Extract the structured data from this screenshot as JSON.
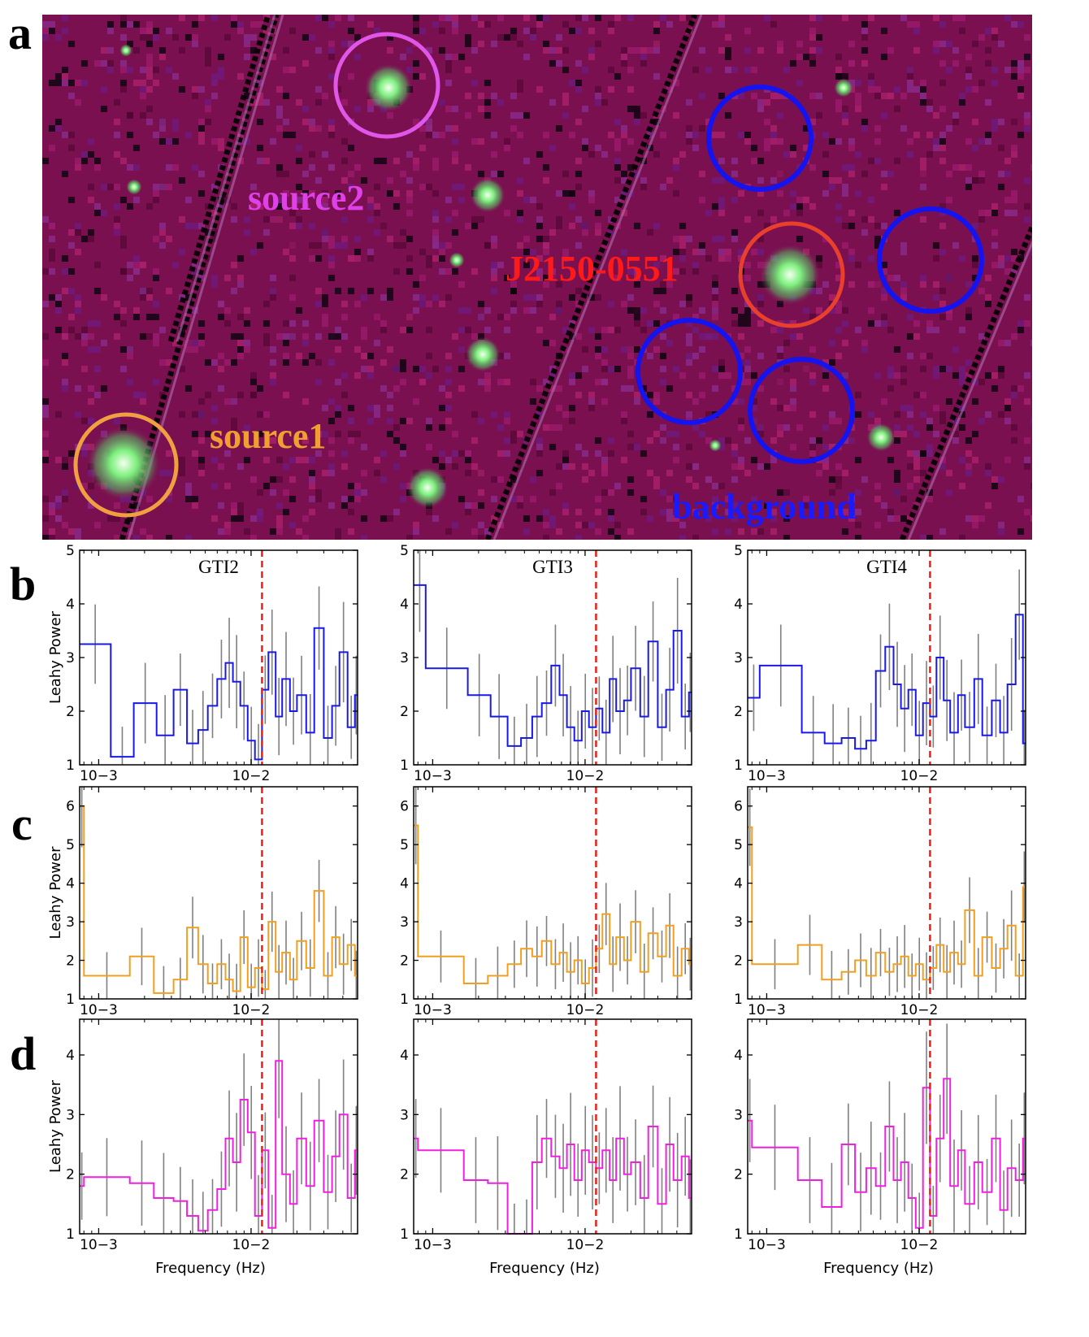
{
  "panel_letters": {
    "a": "a",
    "b": "b",
    "c": "c",
    "d": "d"
  },
  "image_panel": {
    "regions": [
      {
        "label": "source2",
        "color": "#e040e8"
      },
      {
        "label": "J2150-0551",
        "color": "#ff1a1a"
      },
      {
        "label": "source1",
        "color": "#f0a030"
      },
      {
        "label": "background",
        "color": "#1a1aff"
      }
    ],
    "region_outline_colors": {
      "source2": "#e056e8",
      "target": "#e8402c",
      "source1": "#f0a040",
      "background": "#1414f0"
    },
    "background_color": "#7a1050",
    "star_color": "#7ef07e"
  },
  "chart_data": [
    {
      "type": "line",
      "row": "b",
      "x_scale": "log",
      "xlim": [
        0.00075,
        0.05
      ],
      "ylim": [
        1,
        5
      ],
      "yticks": [
        1,
        2,
        3,
        4,
        5
      ],
      "xticks": [
        {
          "value": 0.001,
          "label": "10−3"
        },
        {
          "value": 0.01,
          "label": "10−2"
        }
      ],
      "ylabel": "Leahy Power",
      "xlabel": "",
      "line_color": "#1a1ae6",
      "reference_line_hz": 0.0118,
      "reference_line_color": "#e8201a",
      "panels": [
        {
          "title": "GTI2",
          "freqs": [
            0.00075,
            0.0012,
            0.0017,
            0.0024,
            0.0031,
            0.0038,
            0.0045,
            0.0052,
            0.006,
            0.0068,
            0.0076,
            0.0085,
            0.0095,
            0.0106,
            0.0118,
            0.013,
            0.0145,
            0.016,
            0.018,
            0.02,
            0.023,
            0.026,
            0.03,
            0.034,
            0.038,
            0.043,
            0.048
          ],
          "power": [
            3.25,
            1.15,
            2.15,
            1.55,
            2.4,
            1.4,
            1.65,
            2.1,
            2.6,
            2.9,
            2.55,
            2.1,
            1.45,
            1.1,
            2.4,
            3.1,
            1.9,
            2.6,
            2.0,
            2.3,
            1.6,
            3.55,
            1.5,
            2.1,
            3.1,
            1.7,
            2.3
          ]
        },
        {
          "title": "GTI3",
          "freqs": [
            0.00075,
            0.0009,
            0.0017,
            0.0024,
            0.0031,
            0.0038,
            0.0045,
            0.0052,
            0.006,
            0.0068,
            0.0076,
            0.0085,
            0.0095,
            0.0106,
            0.0118,
            0.013,
            0.0145,
            0.016,
            0.018,
            0.02,
            0.023,
            0.026,
            0.03,
            0.034,
            0.038,
            0.043,
            0.048
          ],
          "power": [
            4.35,
            2.8,
            2.3,
            1.9,
            1.35,
            1.5,
            1.9,
            2.15,
            2.85,
            2.3,
            1.7,
            1.45,
            2.0,
            1.7,
            2.05,
            1.6,
            2.6,
            2.0,
            2.2,
            2.8,
            1.9,
            3.3,
            1.7,
            2.4,
            3.5,
            1.9,
            2.35
          ]
        },
        {
          "title": "GTI4",
          "freqs": [
            0.00075,
            0.0009,
            0.0017,
            0.0024,
            0.0031,
            0.0038,
            0.0045,
            0.0052,
            0.006,
            0.0068,
            0.0076,
            0.0085,
            0.0095,
            0.0106,
            0.0118,
            0.013,
            0.0145,
            0.016,
            0.018,
            0.02,
            0.023,
            0.026,
            0.03,
            0.034,
            0.038,
            0.043,
            0.048
          ],
          "power": [
            2.25,
            2.85,
            1.6,
            1.4,
            1.5,
            1.3,
            1.45,
            2.75,
            3.2,
            2.5,
            2.05,
            2.4,
            1.55,
            2.15,
            1.9,
            3.0,
            2.2,
            1.6,
            2.3,
            1.7,
            2.6,
            1.55,
            2.2,
            1.6,
            2.5,
            3.8,
            1.4
          ]
        }
      ]
    },
    {
      "type": "line",
      "row": "c",
      "x_scale": "log",
      "xlim": [
        0.00075,
        0.05
      ],
      "ylim": [
        1,
        6.5
      ],
      "yticks": [
        1,
        2,
        3,
        4,
        5,
        6
      ],
      "xticks": [
        {
          "value": 0.001,
          "label": "10−3"
        },
        {
          "value": 0.01,
          "label": "10−2"
        }
      ],
      "ylabel": "Leahy Power",
      "xlabel": "",
      "line_color": "#f0a020",
      "reference_line_hz": 0.0118,
      "reference_line_color": "#e8201a",
      "panels": [
        {
          "title": "",
          "freqs": [
            0.00075,
            0.0008,
            0.0016,
            0.0023,
            0.0031,
            0.0038,
            0.0045,
            0.0052,
            0.006,
            0.0068,
            0.0076,
            0.0085,
            0.0095,
            0.0106,
            0.0118,
            0.013,
            0.0145,
            0.016,
            0.018,
            0.02,
            0.023,
            0.026,
            0.03,
            0.034,
            0.038,
            0.043,
            0.048
          ],
          "power": [
            6.0,
            1.6,
            2.1,
            1.15,
            1.5,
            2.85,
            1.9,
            1.4,
            1.9,
            1.5,
            1.2,
            2.6,
            1.3,
            1.8,
            1.25,
            3.0,
            1.7,
            2.2,
            1.5,
            2.5,
            1.8,
            3.8,
            1.6,
            2.6,
            1.9,
            2.4,
            1.6
          ]
        },
        {
          "title": "",
          "freqs": [
            0.00075,
            0.0008,
            0.0016,
            0.0023,
            0.0031,
            0.0038,
            0.0045,
            0.0052,
            0.006,
            0.0068,
            0.0076,
            0.0085,
            0.0095,
            0.0106,
            0.0118,
            0.013,
            0.0145,
            0.016,
            0.018,
            0.02,
            0.023,
            0.026,
            0.03,
            0.034,
            0.038,
            0.043,
            0.048
          ],
          "power": [
            5.5,
            2.1,
            1.4,
            1.6,
            1.9,
            2.3,
            2.1,
            2.5,
            1.9,
            2.2,
            1.7,
            2.0,
            1.4,
            1.8,
            2.3,
            3.2,
            1.9,
            2.6,
            2.0,
            3.0,
            1.7,
            2.7,
            2.1,
            2.9,
            1.6,
            2.3,
            1.9
          ]
        },
        {
          "title": "",
          "freqs": [
            0.00075,
            0.0008,
            0.0016,
            0.0023,
            0.0031,
            0.0038,
            0.0045,
            0.0052,
            0.006,
            0.0068,
            0.0076,
            0.0085,
            0.0095,
            0.0106,
            0.0118,
            0.013,
            0.0145,
            0.016,
            0.018,
            0.02,
            0.023,
            0.026,
            0.03,
            0.034,
            0.038,
            0.043,
            0.048
          ],
          "power": [
            5.45,
            1.9,
            2.4,
            1.5,
            1.7,
            2.0,
            1.6,
            2.2,
            1.7,
            1.9,
            2.1,
            1.6,
            1.9,
            1.5,
            1.8,
            2.4,
            1.7,
            2.2,
            1.9,
            3.3,
            1.6,
            2.6,
            1.8,
            2.3,
            2.9,
            1.6,
            3.9
          ]
        }
      ]
    },
    {
      "type": "line",
      "row": "d",
      "x_scale": "log",
      "xlim": [
        0.00075,
        0.05
      ],
      "ylim": [
        1,
        4.6
      ],
      "yticks": [
        1,
        2,
        3,
        4
      ],
      "xticks": [
        {
          "value": 0.001,
          "label": "10−3"
        },
        {
          "value": 0.01,
          "label": "10−2"
        }
      ],
      "ylabel": "Leahy Power",
      "xlabel": "Frequency (Hz)",
      "line_color": "#f020e0",
      "reference_line_hz": 0.0118,
      "reference_line_color": "#e8201a",
      "panels": [
        {
          "title": "",
          "freqs": [
            0.00075,
            0.0008,
            0.0016,
            0.0023,
            0.0031,
            0.0038,
            0.0045,
            0.0052,
            0.006,
            0.0068,
            0.0076,
            0.0085,
            0.0095,
            0.0106,
            0.0118,
            0.013,
            0.0145,
            0.016,
            0.018,
            0.02,
            0.023,
            0.026,
            0.03,
            0.034,
            0.038,
            0.043,
            0.048
          ],
          "power": [
            1.8,
            1.95,
            1.85,
            1.6,
            1.55,
            1.3,
            1.05,
            1.4,
            1.75,
            2.6,
            2.2,
            3.25,
            2.7,
            1.3,
            2.4,
            1.1,
            3.9,
            2.0,
            1.5,
            2.6,
            1.8,
            2.9,
            1.7,
            2.3,
            3.0,
            1.6,
            2.4
          ]
        },
        {
          "title": "",
          "freqs": [
            0.00075,
            0.0008,
            0.0016,
            0.0023,
            0.0031,
            0.0038,
            0.0045,
            0.0052,
            0.006,
            0.0068,
            0.0076,
            0.0085,
            0.0095,
            0.0106,
            0.0118,
            0.013,
            0.0145,
            0.016,
            0.018,
            0.02,
            0.023,
            0.026,
            0.03,
            0.034,
            0.038,
            0.043,
            0.048
          ],
          "power": [
            2.6,
            2.4,
            1.9,
            1.85,
            1.0,
            1.0,
            2.2,
            2.6,
            2.3,
            2.1,
            2.5,
            1.9,
            2.4,
            2.2,
            2.1,
            2.4,
            1.9,
            2.6,
            2.0,
            2.2,
            1.6,
            2.8,
            1.5,
            2.5,
            1.9,
            2.3,
            1.6
          ]
        },
        {
          "title": "",
          "freqs": [
            0.00075,
            0.0008,
            0.0016,
            0.0023,
            0.0031,
            0.0038,
            0.0045,
            0.0052,
            0.006,
            0.0068,
            0.0076,
            0.0085,
            0.0095,
            0.0106,
            0.0118,
            0.013,
            0.0145,
            0.016,
            0.018,
            0.02,
            0.023,
            0.026,
            0.03,
            0.034,
            0.038,
            0.043,
            0.048
          ],
          "power": [
            2.9,
            2.45,
            1.9,
            1.45,
            2.5,
            1.7,
            2.1,
            1.8,
            2.8,
            1.9,
            2.2,
            1.6,
            1.1,
            3.45,
            1.3,
            2.6,
            3.6,
            1.8,
            2.4,
            1.5,
            2.2,
            1.7,
            2.6,
            1.4,
            2.1,
            1.9,
            2.6
          ]
        }
      ]
    }
  ]
}
